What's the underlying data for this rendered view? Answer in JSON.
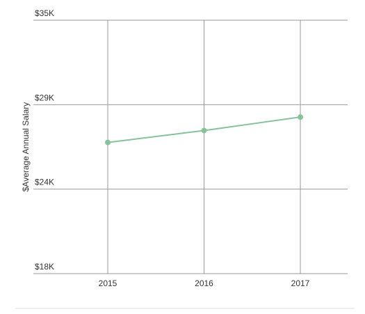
{
  "chart_data": {
    "type": "line",
    "y_label": "$Average Annual Salary",
    "categories": [
      "2015",
      "2016",
      "2017"
    ],
    "series": [
      {
        "name": "Average Annual Salary",
        "color": "#86c39a",
        "values": [
          26800,
          27600,
          28500
        ]
      }
    ],
    "ylim": [
      18000,
      35000
    ],
    "yticks": [
      {
        "value": 18000,
        "label": "$18K"
      },
      {
        "value": 23667,
        "label": "$24K"
      },
      {
        "value": 29333,
        "label": "$29K"
      },
      {
        "value": 35000,
        "label": "$35K"
      }
    ],
    "grid": true
  }
}
